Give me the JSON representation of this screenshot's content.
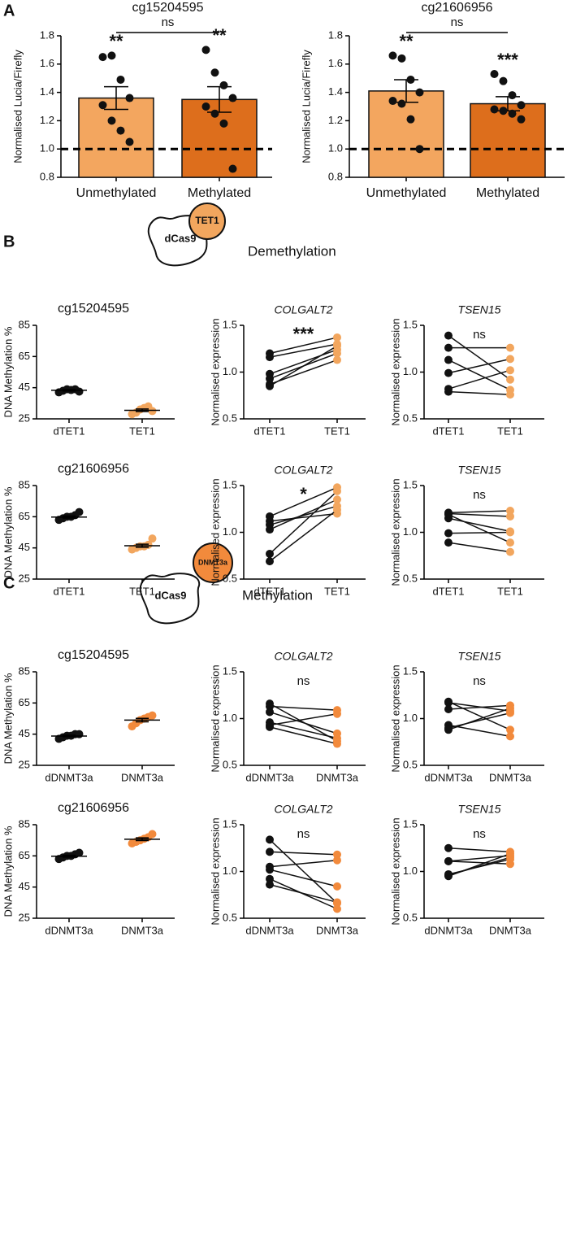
{
  "panels": [
    {
      "label": "A"
    },
    {
      "label": "B",
      "enzyme": "dCas9",
      "effector": "TET1",
      "process": "Demethylation"
    },
    {
      "label": "C",
      "enzyme": "dCas9",
      "effector": "DNMT3a",
      "process": "Methylation"
    }
  ],
  "chart_data": [
    {
      "type": "bar",
      "title": "cg15204595",
      "ylabel": "Normalised Lucia/Firefly",
      "categories": [
        "Unmethylated",
        "Methylated"
      ],
      "values": [
        1.36,
        1.35
      ],
      "errors": [
        0.08,
        0.09
      ],
      "colors": [
        "#f3a65f",
        "#dd6e1c"
      ],
      "points": [
        [
          1.65,
          1.66,
          1.49,
          1.36,
          1.31,
          1.2,
          1.13,
          1.05
        ],
        [
          1.7,
          1.54,
          1.45,
          1.36,
          1.3,
          1.25,
          1.18,
          0.86
        ]
      ],
      "annotations": [
        "**",
        "**"
      ],
      "comparison": "ns",
      "reference_line": 1,
      "ylim": [
        0.8,
        1.8
      ],
      "yticks": [
        0.8,
        {
          "value": 1,
          "label": "1.0"
        },
        1.2,
        1.4,
        1.6,
        1.8
      ]
    },
    {
      "type": "bar",
      "title": "cg21606956",
      "ylabel": "Normalised Lucia/Firefly",
      "categories": [
        "Unmethylated",
        "Methylated"
      ],
      "values": [
        1.41,
        1.32
      ],
      "errors": [
        0.08,
        0.05
      ],
      "colors": [
        "#f3a65f",
        "#dd6e1c"
      ],
      "points": [
        [
          1.66,
          1.64,
          1.49,
          1.4,
          1.34,
          1.32,
          1.21,
          1.0
        ],
        [
          1.53,
          1.48,
          1.38,
          1.31,
          1.28,
          1.27,
          1.25,
          1.21
        ]
      ],
      "annotations": [
        "**",
        "***"
      ],
      "comparison": "ns",
      "reference_line": 1,
      "ylim": [
        0.8,
        1.8
      ],
      "yticks": [
        0.8,
        {
          "value": 1,
          "label": "1.0"
        },
        1.2,
        1.4,
        1.6,
        1.8
      ]
    },
    {
      "type": "strip",
      "title": "cg15204595",
      "ylabel": "DNA Methylation %",
      "categories": [
        "dTET1",
        "TET1"
      ],
      "colors": [
        "#111111",
        "#f2a65e"
      ],
      "points": [
        [
          42,
          43,
          44,
          43.5,
          44,
          42.5
        ],
        [
          28,
          29,
          31,
          32,
          33,
          30
        ]
      ],
      "means": [
        43.3,
        30.5
      ],
      "errors": [
        0.4,
        0.8
      ],
      "ylim": [
        25,
        85
      ],
      "yticks": [
        25,
        45,
        65,
        85
      ]
    },
    {
      "type": "paired",
      "title": "COLGALT2",
      "annotation": "***",
      "ylabel": "Normalised expression",
      "categories": [
        "dTET1",
        "TET1"
      ],
      "colors": [
        "#111111",
        "#f2a65e"
      ],
      "pairs": [
        [
          1.2,
          1.37
        ],
        [
          1.16,
          1.3
        ],
        [
          0.98,
          1.24
        ],
        [
          0.93,
          1.2
        ],
        [
          0.87,
          1.13
        ],
        [
          0.85,
          1.28
        ]
      ],
      "ylim": [
        0.5,
        1.5
      ],
      "yticks": [
        0.5,
        {
          "value": 1,
          "label": "1.0"
        },
        1.5
      ]
    },
    {
      "type": "paired",
      "title": "TSEN15",
      "annotation": "ns",
      "ylabel": "Normalised expression",
      "categories": [
        "dTET1",
        "TET1"
      ],
      "colors": [
        "#111111",
        "#f2a65e"
      ],
      "pairs": [
        [
          1.39,
          0.92
        ],
        [
          1.26,
          1.26
        ],
        [
          1.13,
          0.81
        ],
        [
          0.99,
          1.14
        ],
        [
          0.82,
          1.02
        ],
        [
          0.79,
          0.76
        ]
      ],
      "ylim": [
        0.5,
        1.5
      ],
      "yticks": [
        0.5,
        {
          "value": 1,
          "label": "1.0"
        },
        1.5
      ]
    },
    {
      "type": "strip",
      "title": "cg21606956",
      "ylabel": "DNA Methylation %",
      "categories": [
        "dTET1",
        "TET1"
      ],
      "colors": [
        "#111111",
        "#f2a65e"
      ],
      "points": [
        [
          63,
          64,
          65,
          65,
          66,
          68
        ],
        [
          44,
          45,
          46,
          46,
          47,
          51
        ]
      ],
      "means": [
        64.8,
        46.4
      ],
      "errors": [
        0.7,
        1
      ],
      "ylim": [
        25,
        85
      ],
      "yticks": [
        25,
        45,
        65,
        85
      ]
    },
    {
      "type": "paired",
      "title": "COLGALT2",
      "annotation": "*",
      "ylabel": "Normalised expression",
      "categories": [
        "dTET1",
        "TET1"
      ],
      "colors": [
        "#111111",
        "#f2a65e"
      ],
      "pairs": [
        [
          1.17,
          1.48
        ],
        [
          1.12,
          1.2
        ],
        [
          1.08,
          1.28
        ],
        [
          1.03,
          1.35
        ],
        [
          0.77,
          1.44
        ],
        [
          0.69,
          1.24
        ]
      ],
      "ylim": [
        0.5,
        1.5
      ],
      "yticks": [
        0.5,
        {
          "value": 1,
          "label": "1.0"
        },
        1.5
      ]
    },
    {
      "type": "paired",
      "title": "TSEN15",
      "annotation": "ns",
      "ylabel": "Normalised expression",
      "categories": [
        "dTET1",
        "TET1"
      ],
      "colors": [
        "#111111",
        "#f2a65e"
      ],
      "pairs": [
        [
          1.21,
          1.23
        ],
        [
          1.19,
          0.89
        ],
        [
          1.15,
          1.01
        ],
        [
          0.99,
          1.0
        ],
        [
          0.89,
          0.79
        ],
        [
          1.2,
          1.17
        ]
      ],
      "ylim": [
        0.5,
        1.5
      ],
      "yticks": [
        0.5,
        {
          "value": 1,
          "label": "1.0"
        },
        1.5
      ]
    },
    {
      "type": "strip",
      "title": "cg15204595",
      "ylabel": "DNA Methylation %",
      "categories": [
        "dDNMT3a",
        "DNMT3a"
      ],
      "colors": [
        "#111111",
        "#f28a3c"
      ],
      "points": [
        [
          42,
          43,
          44,
          44,
          45,
          45
        ],
        [
          50,
          52,
          54,
          55,
          56,
          57
        ]
      ],
      "means": [
        43.8,
        54
      ],
      "errors": [
        0.5,
        1.1
      ],
      "ylim": [
        25,
        85
      ],
      "yticks": [
        25,
        45,
        65,
        85
      ]
    },
    {
      "type": "paired",
      "title": "COLGALT2",
      "annotation": "ns",
      "ylabel": "Normalised expression",
      "categories": [
        "dDNMT3a",
        "DNMT3a"
      ],
      "colors": [
        "#111111",
        "#f28a3c"
      ],
      "pairs": [
        [
          1.16,
          0.76
        ],
        [
          1.13,
          1.09
        ],
        [
          1.07,
          0.84
        ],
        [
          0.96,
          0.79
        ],
        [
          0.93,
          1.05
        ],
        [
          0.91,
          0.73
        ]
      ],
      "ylim": [
        0.5,
        1.5
      ],
      "yticks": [
        0.5,
        {
          "value": 1,
          "label": "1.0"
        },
        1.5
      ]
    },
    {
      "type": "paired",
      "title": "TSEN15",
      "annotation": "ns",
      "ylabel": "Normalised expression",
      "categories": [
        "dDNMT3a",
        "DNMT3a"
      ],
      "colors": [
        "#111111",
        "#f28a3c"
      ],
      "pairs": [
        [
          1.18,
          0.88
        ],
        [
          1.17,
          1.08
        ],
        [
          1.1,
          1.14
        ],
        [
          0.93,
          0.81
        ],
        [
          0.9,
          1.06
        ],
        [
          0.88,
          1.11
        ]
      ],
      "ylim": [
        0.5,
        1.5
      ],
      "yticks": [
        0.5,
        {
          "value": 1,
          "label": "1.0"
        },
        1.5
      ]
    },
    {
      "type": "strip",
      "title": "cg21606956",
      "ylabel": "DNA Methylation %",
      "categories": [
        "dDNMT3a",
        "DNMT3a"
      ],
      "colors": [
        "#111111",
        "#f28a3c"
      ],
      "points": [
        [
          63,
          64,
          65,
          65,
          66,
          67
        ],
        [
          73,
          74,
          75,
          76,
          77,
          79
        ]
      ],
      "means": [
        64.8,
        75.7
      ],
      "errors": [
        0.6,
        0.9
      ],
      "ylim": [
        25,
        85
      ],
      "yticks": [
        25,
        45,
        65,
        85
      ]
    },
    {
      "type": "paired",
      "title": "COLGALT2",
      "annotation": "ns",
      "ylabel": "Normalised expression",
      "categories": [
        "dDNMT3a",
        "DNMT3a"
      ],
      "colors": [
        "#111111",
        "#f28a3c"
      ],
      "pairs": [
        [
          1.34,
          0.66
        ],
        [
          1.21,
          1.18
        ],
        [
          1.05,
          1.12
        ],
        [
          1.02,
          0.84
        ],
        [
          0.92,
          0.6
        ],
        [
          0.86,
          0.67
        ]
      ],
      "ylim": [
        0.5,
        1.5
      ],
      "yticks": [
        0.5,
        {
          "value": 1,
          "label": "1.0"
        },
        1.5
      ]
    },
    {
      "type": "paired",
      "title": "TSEN15",
      "annotation": "ns",
      "ylabel": "Normalised expression",
      "categories": [
        "dDNMT3a",
        "DNMT3a"
      ],
      "colors": [
        "#111111",
        "#f28a3c"
      ],
      "pairs": [
        [
          1.25,
          1.21
        ],
        [
          1.11,
          1.17
        ],
        [
          1.11,
          1.08
        ],
        [
          0.97,
          1.13
        ],
        [
          0.95,
          1.19
        ],
        [
          0.96,
          1.15
        ]
      ],
      "ylim": [
        0.5,
        1.5
      ],
      "yticks": [
        0.5,
        {
          "value": 1,
          "label": "1.0"
        },
        1.5
      ]
    }
  ]
}
